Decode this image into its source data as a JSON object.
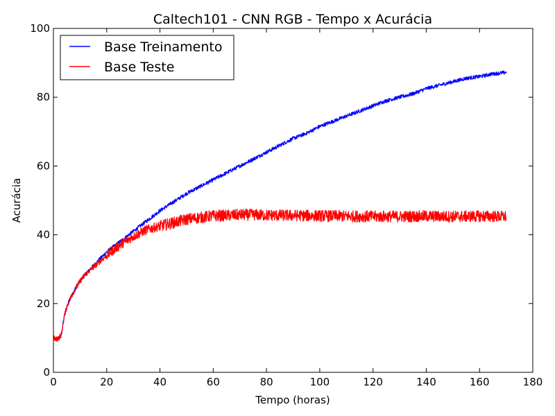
{
  "chart_data": {
    "type": "line",
    "title": "Caltech101 - CNN RGB - Tempo x Acurácia",
    "xlabel": "Tempo (horas)",
    "ylabel": "Acurácia",
    "xlim": [
      0,
      180
    ],
    "ylim": [
      0,
      100
    ],
    "xticks": [
      0,
      20,
      40,
      60,
      80,
      100,
      120,
      140,
      160,
      180
    ],
    "yticks": [
      0,
      20,
      40,
      60,
      80,
      100
    ],
    "grid": false,
    "legend_position": "top-left",
    "series": [
      {
        "name": "Base Treinamento",
        "color": "#0000ff",
        "x": [
          0,
          1,
          2,
          3,
          4,
          5,
          6,
          8,
          10,
          12,
          15,
          20,
          25,
          30,
          35,
          40,
          45,
          50,
          55,
          60,
          65,
          70,
          75,
          80,
          85,
          90,
          95,
          100,
          105,
          110,
          115,
          120,
          125,
          130,
          135,
          140,
          145,
          150,
          155,
          160,
          165,
          170
        ],
        "y": [
          10,
          9.5,
          10,
          11,
          16,
          19,
          21,
          24,
          26.5,
          28.5,
          31,
          35,
          38,
          41,
          44,
          47,
          49.5,
          52,
          54,
          56,
          58,
          60,
          62,
          64,
          66,
          68,
          69.5,
          71.5,
          73,
          74.5,
          76,
          77.5,
          79,
          80,
          81,
          82.5,
          83.5,
          84.5,
          85.5,
          86,
          86.8,
          87.2
        ]
      },
      {
        "name": "Base Teste",
        "color": "#ff0000",
        "x": [
          0,
          1,
          2,
          3,
          4,
          5,
          6,
          8,
          10,
          12,
          15,
          20,
          25,
          30,
          35,
          40,
          45,
          50,
          55,
          60,
          65,
          70,
          75,
          80,
          90,
          100,
          110,
          120,
          130,
          140,
          150,
          160,
          170
        ],
        "y": [
          10,
          9.5,
          10,
          11,
          16,
          19,
          21,
          24,
          26.5,
          28.5,
          30.5,
          34,
          37,
          39.5,
          41.5,
          42.5,
          43.5,
          44.5,
          45,
          45.5,
          45.6,
          45.8,
          45.8,
          45.7,
          45.6,
          45.5,
          45.4,
          45.3,
          45.3,
          45.4,
          45.3,
          45.4,
          45.3
        ]
      }
    ]
  }
}
